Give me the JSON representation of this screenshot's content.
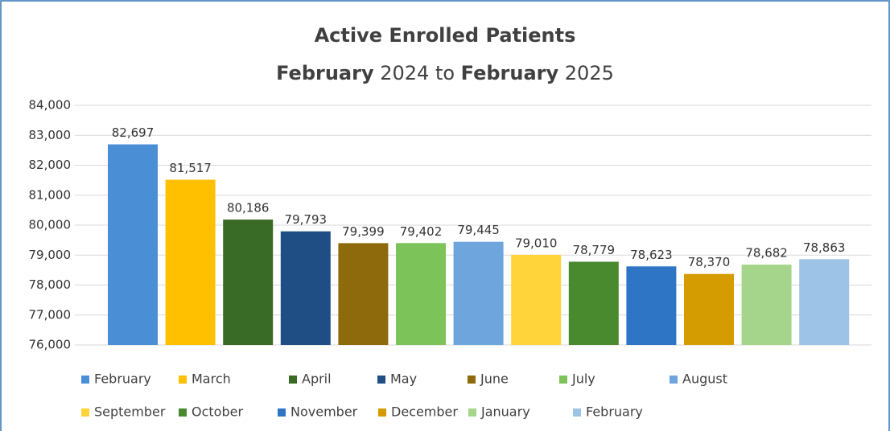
{
  "chart_data": {
    "type": "bar",
    "title": "Active Enrolled Patients",
    "subtitle": [
      {
        "text": "February",
        "bold": true
      },
      {
        "text": " 2024 to ",
        "bold": false
      },
      {
        "text": "February",
        "bold": true
      },
      {
        "text": " 2025",
        "bold": false
      }
    ],
    "categories": [
      "February",
      "March",
      "April",
      "May",
      "June",
      "July",
      "August",
      "September",
      "October",
      "November",
      "December",
      "January",
      "February"
    ],
    "values": [
      82697,
      81517,
      80186,
      79793,
      79399,
      79402,
      79445,
      79010,
      78779,
      78623,
      78370,
      78682,
      78863
    ],
    "value_labels": [
      "82,697",
      "81,517",
      "80,186",
      "79,793",
      "79,399",
      "79,402",
      "79,445",
      "79,010",
      "78,779",
      "78,623",
      "78,370",
      "78,682",
      "78,863"
    ],
    "colors": [
      "#4a8fd6",
      "#ffc000",
      "#3a6b26",
      "#1f4e85",
      "#8f6a0c",
      "#7cc35a",
      "#6fa5dd",
      "#ffd43b",
      "#4a8a2e",
      "#2e75c6",
      "#d49c00",
      "#a5d58a",
      "#9dc3e6"
    ],
    "ylim": [
      76000,
      84000
    ],
    "yticks": [
      {
        "value": 76000,
        "label": "76,000"
      },
      {
        "value": 77000,
        "label": "77,000"
      },
      {
        "value": 78000,
        "label": "78,000"
      },
      {
        "value": 79000,
        "label": "79,000"
      },
      {
        "value": 80000,
        "label": "80,000"
      },
      {
        "value": 81000,
        "label": "81,000"
      },
      {
        "value": 82000,
        "label": "82,000"
      },
      {
        "value": 83000,
        "label": "83,000"
      },
      {
        "value": 84000,
        "label": "84,000"
      }
    ],
    "grid": true,
    "legend": "bottom"
  }
}
